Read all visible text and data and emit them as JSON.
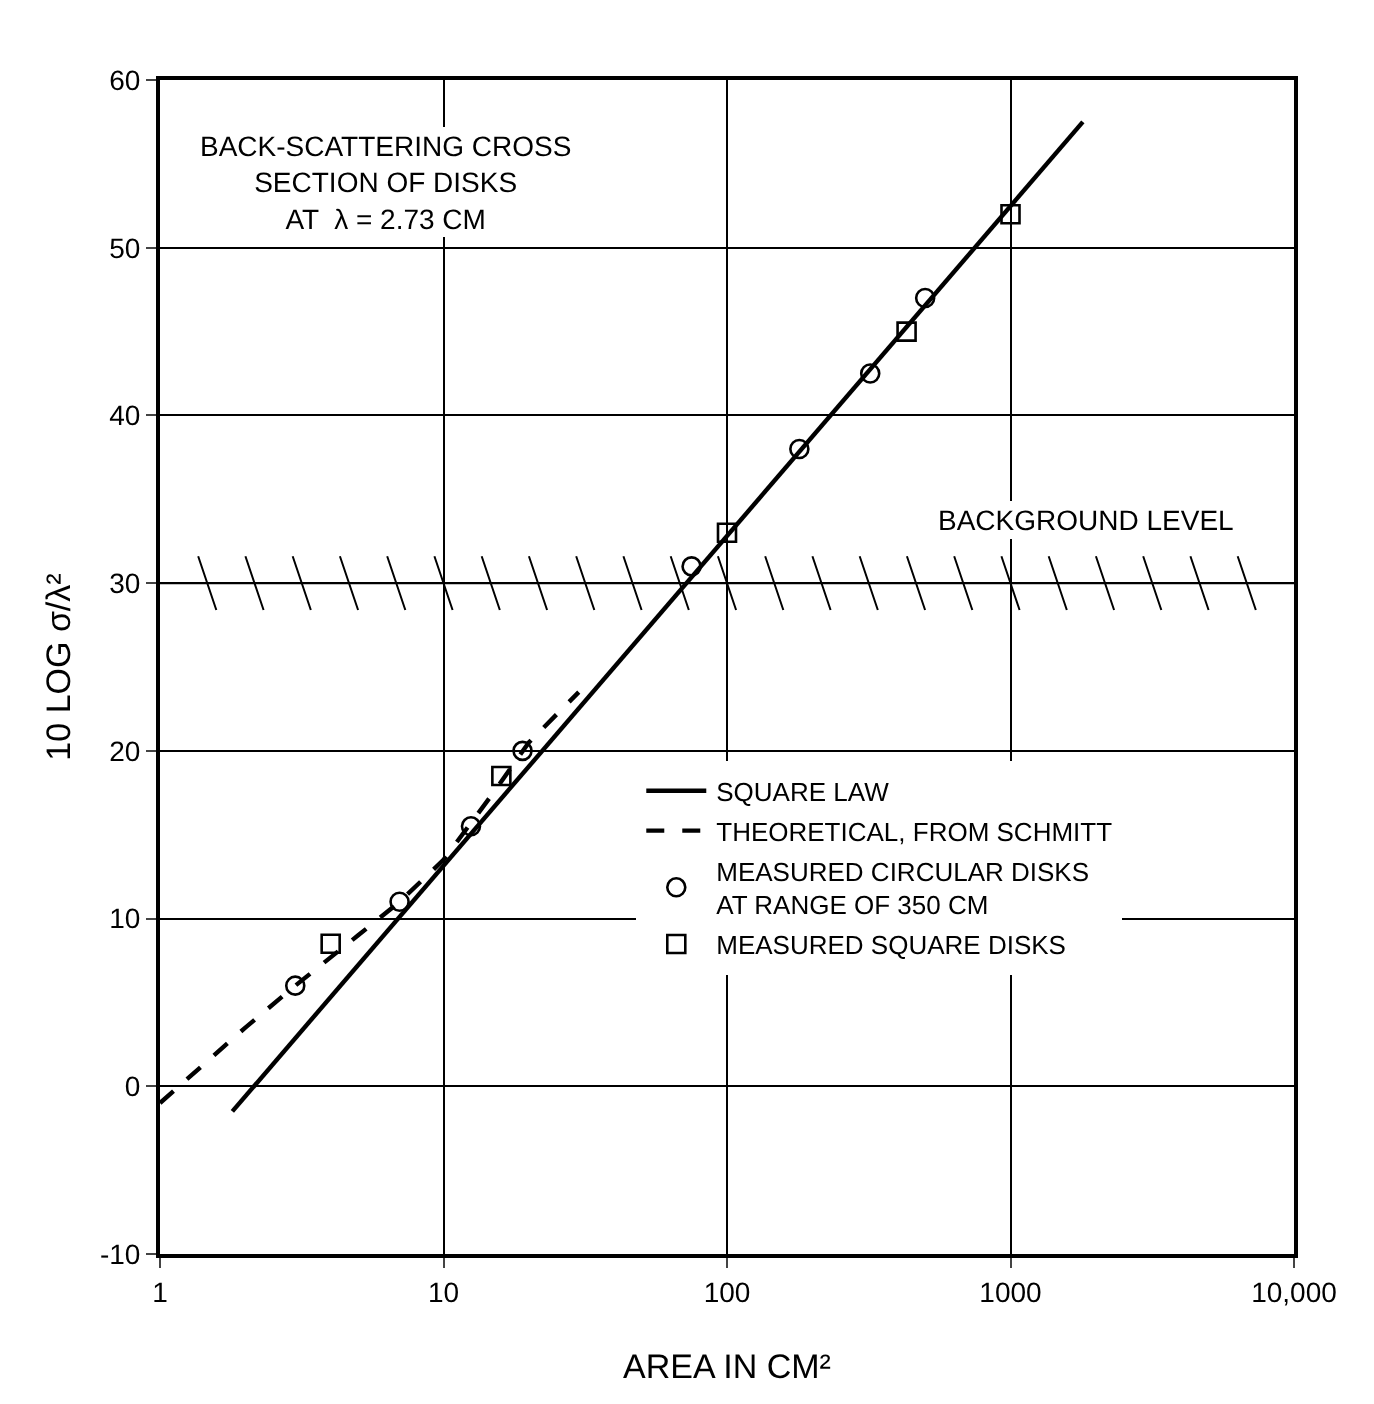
{
  "chart_data": {
    "type": "scatter",
    "title": "BACK-SCATTERING CROSS\nSECTION OF DISKS\nAT  λ = 2.73 CM",
    "xlabel": "AREA IN CM²",
    "ylabel": "10 LOG σ/λ²",
    "log": "x",
    "xlim": [
      1,
      10000
    ],
    "xticks": [
      1,
      10,
      100,
      1000,
      {
        "value": 10000,
        "label": "10,000"
      }
    ],
    "ylim": [
      -10,
      60
    ],
    "yticks": [
      -10,
      0,
      10,
      20,
      30,
      40,
      50,
      60
    ],
    "grid": true,
    "legend": "right",
    "ref_lines": [
      {
        "axis": "y",
        "value": 30,
        "label": "BACKGROUND LEVEL",
        "color": "#000000"
      }
    ],
    "series": [
      {
        "name": "SQUARE LAW",
        "type": "line",
        "color": "#000000",
        "line_style": "solid",
        "marker": "none",
        "x": [
          1.8,
          1800
        ],
        "values": [
          -1.5,
          57.5
        ]
      },
      {
        "name": "THEORETICAL, FROM SCHMITT",
        "type": "line",
        "color": "#000000",
        "line_style": "dashed",
        "marker": "none",
        "x": [
          1,
          2,
          3,
          5,
          7,
          10,
          15,
          20,
          30
        ],
        "values": [
          -1,
          3.5,
          6,
          9,
          11,
          13.5,
          17.5,
          20.5,
          23.5
        ]
      },
      {
        "name": "MEASURED CIRCULAR DISKS\nAT RANGE OF 350 CM",
        "type": "scatter",
        "color": "#000000",
        "marker": "circle",
        "x": [
          3,
          7,
          12.5,
          19,
          75,
          180,
          320,
          500
        ],
        "values": [
          6,
          11,
          15.5,
          20,
          31,
          38,
          42.5,
          47
        ]
      },
      {
        "name": "MEASURED SQUARE DISKS",
        "type": "scatter",
        "color": "#000000",
        "marker": "square",
        "x": [
          4,
          16,
          100,
          430,
          1000
        ],
        "values": [
          8.5,
          18.5,
          33,
          45,
          52
        ]
      }
    ]
  }
}
